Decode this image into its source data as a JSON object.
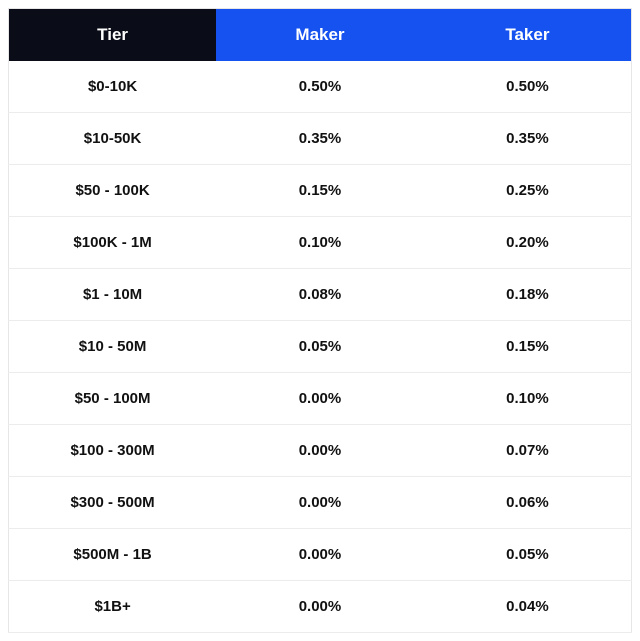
{
  "table": {
    "type": "table",
    "header_colors": {
      "tier_bg": "#0a0d17",
      "maker_bg": "#1652f0",
      "taker_bg": "#1652f0",
      "header_text": "#ffffff"
    },
    "row_border_color": "#ececec",
    "cell_text_color": "#111111",
    "font_size_header": 17,
    "font_size_cell": 15,
    "columns": [
      "Tier",
      "Maker",
      "Taker"
    ],
    "rows": [
      {
        "tier": "$0-10K",
        "maker": "0.50%",
        "taker": "0.50%"
      },
      {
        "tier": "$10-50K",
        "maker": "0.35%",
        "taker": "0.35%"
      },
      {
        "tier": "$50 - 100K",
        "maker": "0.15%",
        "taker": "0.25%"
      },
      {
        "tier": "$100K - 1M",
        "maker": "0.10%",
        "taker": "0.20%"
      },
      {
        "tier": "$1 - 10M",
        "maker": "0.08%",
        "taker": "0.18%"
      },
      {
        "tier": "$10 - 50M",
        "maker": "0.05%",
        "taker": "0.15%"
      },
      {
        "tier": "$50 - 100M",
        "maker": "0.00%",
        "taker": "0.10%"
      },
      {
        "tier": "$100 - 300M",
        "maker": "0.00%",
        "taker": "0.07%"
      },
      {
        "tier": "$300 - 500M",
        "maker": "0.00%",
        "taker": "0.06%"
      },
      {
        "tier": "$500M - 1B",
        "maker": "0.00%",
        "taker": "0.05%"
      },
      {
        "tier": "$1B+",
        "maker": "0.00%",
        "taker": "0.04%"
      }
    ]
  }
}
